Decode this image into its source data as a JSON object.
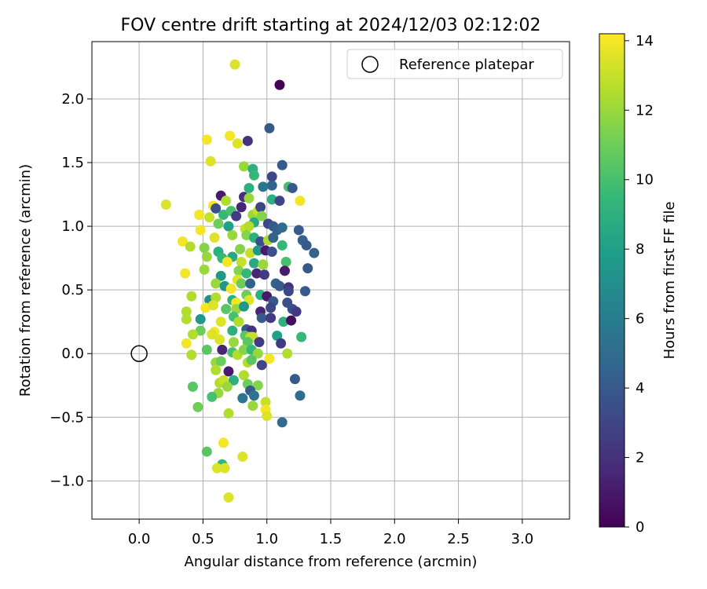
{
  "chart_data": {
    "type": "scatter",
    "title": "FOV centre drift starting at 2024/12/03 02:12:02",
    "xlabel": "Angular distance from reference (arcmin)",
    "ylabel": "Rotation from reference (arcmin)",
    "xlim": [
      -0.37,
      3.37
    ],
    "ylim": [
      -1.3,
      2.45
    ],
    "xticks": [
      0.0,
      0.5,
      1.0,
      1.5,
      2.0,
      2.5,
      3.0
    ],
    "xtick_labels": [
      "0.0",
      "0.5",
      "1.0",
      "1.5",
      "2.0",
      "2.5",
      "3.0"
    ],
    "yticks": [
      -1.0,
      -0.5,
      0.0,
      0.5,
      1.0,
      1.5,
      2.0
    ],
    "ytick_labels": [
      "−1.0",
      "−0.5",
      "0.0",
      "0.5",
      "1.0",
      "1.5",
      "2.0"
    ],
    "grid": true,
    "legend_position": "top-right",
    "legend": [
      {
        "label": "Reference platepar",
        "marker": "open-circle"
      }
    ],
    "reference_point": {
      "x": 0.0,
      "y": 0.0
    },
    "colorbar": {
      "label": "Hours from first FF file",
      "colormap": "viridis",
      "range": [
        0,
        14.2
      ],
      "ticks": [
        0,
        2,
        4,
        6,
        8,
        10,
        12,
        14
      ],
      "tick_labels": [
        "0",
        "2",
        "4",
        "6",
        "8",
        "10",
        "12",
        "14"
      ],
      "colors": [
        "#440154",
        "#482878",
        "#3e4989",
        "#31688e",
        "#26828e",
        "#1f9e89",
        "#35b779",
        "#6ece58",
        "#b5de2b",
        "#fde725"
      ]
    },
    "points": [
      [
        1.1,
        2.11,
        0.0
      ],
      [
        0.75,
        2.27,
        13.5
      ],
      [
        1.02,
        1.77,
        4.0
      ],
      [
        0.85,
        1.67,
        2.0
      ],
      [
        0.53,
        1.68,
        14.0
      ],
      [
        0.71,
        1.71,
        14.0
      ],
      [
        0.77,
        1.65,
        13.5
      ],
      [
        0.56,
        1.51,
        13.5
      ],
      [
        0.82,
        1.47,
        12.0
      ],
      [
        0.89,
        1.45,
        9.0
      ],
      [
        1.12,
        1.48,
        4.0
      ],
      [
        0.9,
        1.4,
        9.5
      ],
      [
        1.04,
        1.39,
        3.0
      ],
      [
        1.04,
        1.32,
        4.5
      ],
      [
        1.17,
        1.31,
        10.0
      ],
      [
        1.2,
        1.3,
        4.0
      ],
      [
        0.64,
        1.24,
        1.0
      ],
      [
        0.68,
        1.2,
        12.5
      ],
      [
        0.86,
        1.3,
        9.0
      ],
      [
        0.82,
        1.23,
        2.0
      ],
      [
        0.86,
        1.22,
        12.0
      ],
      [
        0.97,
        1.31,
        5.5
      ],
      [
        1.04,
        1.21,
        9.0
      ],
      [
        1.1,
        1.2,
        3.0
      ],
      [
        1.26,
        1.2,
        14.0
      ],
      [
        0.21,
        1.17,
        13.5
      ],
      [
        0.58,
        1.16,
        14.0
      ],
      [
        0.6,
        1.14,
        3.5
      ],
      [
        0.66,
        1.09,
        9.5
      ],
      [
        0.72,
        1.12,
        10.0
      ],
      [
        0.8,
        1.15,
        1.5
      ],
      [
        0.89,
        1.09,
        12.0
      ],
      [
        0.93,
        1.12,
        13.0
      ],
      [
        0.95,
        1.15,
        3.0
      ],
      [
        0.9,
        1.03,
        8.5
      ],
      [
        0.96,
        1.08,
        11.5
      ],
      [
        1.01,
        1.02,
        3.0
      ],
      [
        1.05,
        1.0,
        4.0
      ],
      [
        1.08,
        0.97,
        4.5
      ],
      [
        1.12,
        0.99,
        5.0
      ],
      [
        0.47,
        1.09,
        14.0
      ],
      [
        0.55,
        1.07,
        13.0
      ],
      [
        0.76,
        1.08,
        2.5
      ],
      [
        0.62,
        1.02,
        11.0
      ],
      [
        0.7,
        1.0,
        8.0
      ],
      [
        0.83,
        0.98,
        13.0
      ],
      [
        0.86,
        1.0,
        12.5
      ],
      [
        0.48,
        0.97,
        14.0
      ],
      [
        0.59,
        0.91,
        13.5
      ],
      [
        0.73,
        0.93,
        12.0
      ],
      [
        0.84,
        0.93,
        11.5
      ],
      [
        0.9,
        0.91,
        9.0
      ],
      [
        0.95,
        0.88,
        3.5
      ],
      [
        1.01,
        0.89,
        12.5
      ],
      [
        1.05,
        0.91,
        4.5
      ],
      [
        1.12,
        0.85,
        9.5
      ],
      [
        1.25,
        0.97,
        4.0
      ],
      [
        1.28,
        0.89,
        4.5
      ],
      [
        1.31,
        0.85,
        4.0
      ],
      [
        1.37,
        0.79,
        4.5
      ],
      [
        0.34,
        0.88,
        14.0
      ],
      [
        0.4,
        0.84,
        12.5
      ],
      [
        0.51,
        0.83,
        11.5
      ],
      [
        0.62,
        0.8,
        9.0
      ],
      [
        0.73,
        0.76,
        8.5
      ],
      [
        0.79,
        0.82,
        11.5
      ],
      [
        0.87,
        0.79,
        13.0
      ],
      [
        0.93,
        0.81,
        7.5
      ],
      [
        0.99,
        0.81,
        1.0
      ],
      [
        1.04,
        0.8,
        3.5
      ],
      [
        0.53,
        0.76,
        12.0
      ],
      [
        0.65,
        0.75,
        9.5
      ],
      [
        0.69,
        0.72,
        14.0
      ],
      [
        0.8,
        0.72,
        13.0
      ],
      [
        0.9,
        0.71,
        8.5
      ],
      [
        0.97,
        0.7,
        12.0
      ],
      [
        1.15,
        0.72,
        10.0
      ],
      [
        1.32,
        0.67,
        4.0
      ],
      [
        0.51,
        0.66,
        12.0
      ],
      [
        0.64,
        0.61,
        7.5
      ],
      [
        0.78,
        0.65,
        11.5
      ],
      [
        0.84,
        0.63,
        9.5
      ],
      [
        0.92,
        0.63,
        1.5
      ],
      [
        0.98,
        0.62,
        2.5
      ],
      [
        1.14,
        0.65,
        1.0
      ],
      [
        0.36,
        0.63,
        14.0
      ],
      [
        0.6,
        0.55,
        12.0
      ],
      [
        0.67,
        0.53,
        7.5
      ],
      [
        0.77,
        0.58,
        13.5
      ],
      [
        0.8,
        0.55,
        11.0
      ],
      [
        0.87,
        0.55,
        4.5
      ],
      [
        1.07,
        0.55,
        4.5
      ],
      [
        1.1,
        0.53,
        4.0
      ],
      [
        1.17,
        0.52,
        2.0
      ],
      [
        1.3,
        0.49,
        4.0
      ],
      [
        0.72,
        0.51,
        14.0
      ],
      [
        0.84,
        0.46,
        11.0
      ],
      [
        0.95,
        0.46,
        9.0
      ],
      [
        1.0,
        0.45,
        1.0
      ],
      [
        1.17,
        0.49,
        3.0
      ],
      [
        0.41,
        0.45,
        12.5
      ],
      [
        0.55,
        0.42,
        7.0
      ],
      [
        0.6,
        0.44,
        12.5
      ],
      [
        0.73,
        0.42,
        9.0
      ],
      [
        0.76,
        0.4,
        14.0
      ],
      [
        0.86,
        0.42,
        13.5
      ],
      [
        1.05,
        0.41,
        4.0
      ],
      [
        1.16,
        0.4,
        3.5
      ],
      [
        0.37,
        0.33,
        12.5
      ],
      [
        0.52,
        0.36,
        14.0
      ],
      [
        0.58,
        0.38,
        13.5
      ],
      [
        0.68,
        0.35,
        10.5
      ],
      [
        0.76,
        0.35,
        12.0
      ],
      [
        0.82,
        0.37,
        7.5
      ],
      [
        0.95,
        0.33,
        1.5
      ],
      [
        1.03,
        0.36,
        3.0
      ],
      [
        1.2,
        0.35,
        3.5
      ],
      [
        1.23,
        0.33,
        2.5
      ],
      [
        0.37,
        0.27,
        12.5
      ],
      [
        0.48,
        0.27,
        7.5
      ],
      [
        0.64,
        0.25,
        13.5
      ],
      [
        0.74,
        0.29,
        10.0
      ],
      [
        0.78,
        0.25,
        12.5
      ],
      [
        0.96,
        0.28,
        4.0
      ],
      [
        1.03,
        0.28,
        2.5
      ],
      [
        1.13,
        0.25,
        9.0
      ],
      [
        1.19,
        0.26,
        0.5
      ],
      [
        0.48,
        0.18,
        11.0
      ],
      [
        0.59,
        0.17,
        14.0
      ],
      [
        0.73,
        0.18,
        9.0
      ],
      [
        0.84,
        0.19,
        4.0
      ],
      [
        0.88,
        0.18,
        2.0
      ],
      [
        0.83,
        0.14,
        10.5
      ],
      [
        0.87,
        0.13,
        12.5
      ],
      [
        0.89,
        0.13,
        13.0
      ],
      [
        1.08,
        0.14,
        8.0
      ],
      [
        1.27,
        0.13,
        9.5
      ],
      [
        0.37,
        0.08,
        14.0
      ],
      [
        0.42,
        0.15,
        12.5
      ],
      [
        0.57,
        0.15,
        13.5
      ],
      [
        0.63,
        0.11,
        13.5
      ],
      [
        0.74,
        0.09,
        12.0
      ],
      [
        0.85,
        0.09,
        10.5
      ],
      [
        0.94,
        0.09,
        2.5
      ],
      [
        1.11,
        0.08,
        2.5
      ],
      [
        0.53,
        0.03,
        10.5
      ],
      [
        0.65,
        0.03,
        1.5
      ],
      [
        0.73,
        0.01,
        10.0
      ],
      [
        0.77,
        -0.01,
        12.5
      ],
      [
        0.82,
        0.03,
        11.5
      ],
      [
        0.88,
        0.03,
        9.5
      ],
      [
        0.93,
        0.0,
        12.0
      ],
      [
        1.02,
        -0.04,
        14.0
      ],
      [
        1.16,
        0.0,
        12.5
      ],
      [
        0.41,
        -0.01,
        12.5
      ],
      [
        0.6,
        -0.07,
        12.0
      ],
      [
        0.64,
        -0.06,
        11.0
      ],
      [
        0.85,
        -0.07,
        12.5
      ],
      [
        0.88,
        -0.05,
        10.5
      ],
      [
        0.96,
        -0.09,
        3.0
      ],
      [
        0.6,
        -0.13,
        12.5
      ],
      [
        0.7,
        -0.14,
        1.0
      ],
      [
        0.82,
        -0.17,
        12.5
      ],
      [
        0.74,
        -0.21,
        9.0
      ],
      [
        0.63,
        -0.23,
        12.5
      ],
      [
        0.66,
        -0.21,
        13.0
      ],
      [
        0.69,
        -0.26,
        12.0
      ],
      [
        0.85,
        -0.24,
        11.0
      ],
      [
        0.93,
        -0.25,
        11.5
      ],
      [
        1.22,
        -0.2,
        4.0
      ],
      [
        0.42,
        -0.26,
        10.5
      ],
      [
        0.62,
        -0.31,
        12.0
      ],
      [
        0.81,
        -0.35,
        5.5
      ],
      [
        0.87,
        -0.29,
        4.0
      ],
      [
        0.9,
        -0.33,
        5.5
      ],
      [
        0.57,
        -0.34,
        10.0
      ],
      [
        0.89,
        -0.41,
        12.0
      ],
      [
        0.99,
        -0.38,
        13.0
      ],
      [
        1.26,
        -0.33,
        5.0
      ],
      [
        0.46,
        -0.42,
        11.0
      ],
      [
        0.7,
        -0.47,
        12.5
      ],
      [
        0.99,
        -0.44,
        14.0
      ],
      [
        1.0,
        -0.49,
        13.5
      ],
      [
        1.12,
        -0.54,
        5.0
      ],
      [
        0.66,
        -0.7,
        14.0
      ],
      [
        0.53,
        -0.77,
        10.5
      ],
      [
        0.81,
        -0.81,
        13.5
      ],
      [
        0.65,
        -0.87,
        9.5
      ],
      [
        0.61,
        -0.9,
        13.5
      ],
      [
        0.67,
        -0.9,
        13.5
      ],
      [
        0.7,
        -1.13,
        13.5
      ]
    ]
  }
}
